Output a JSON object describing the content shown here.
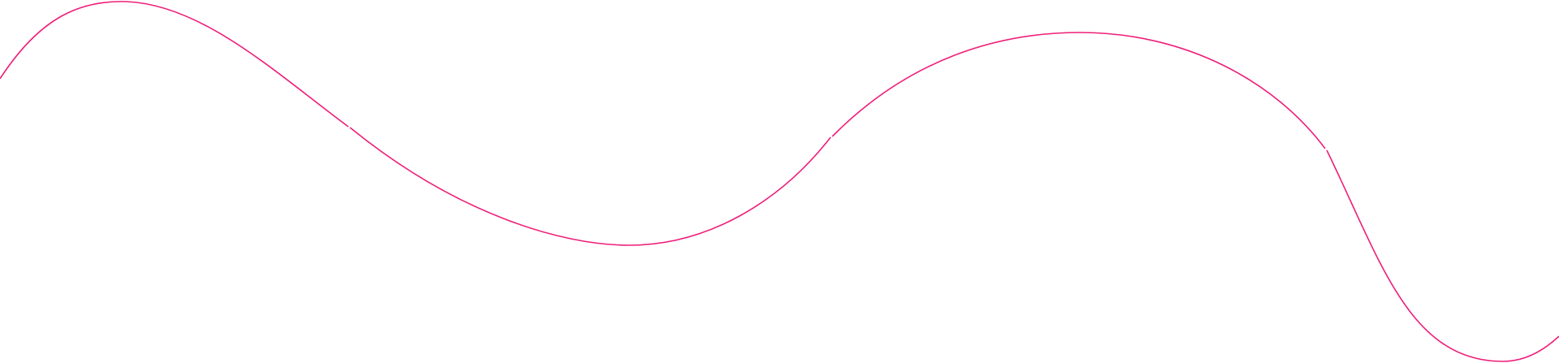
{
  "decoration": {
    "type": "wavy-line",
    "stroke_color": "#ee1e7a",
    "background_color": "#ffffff",
    "segment_count": 4
  }
}
